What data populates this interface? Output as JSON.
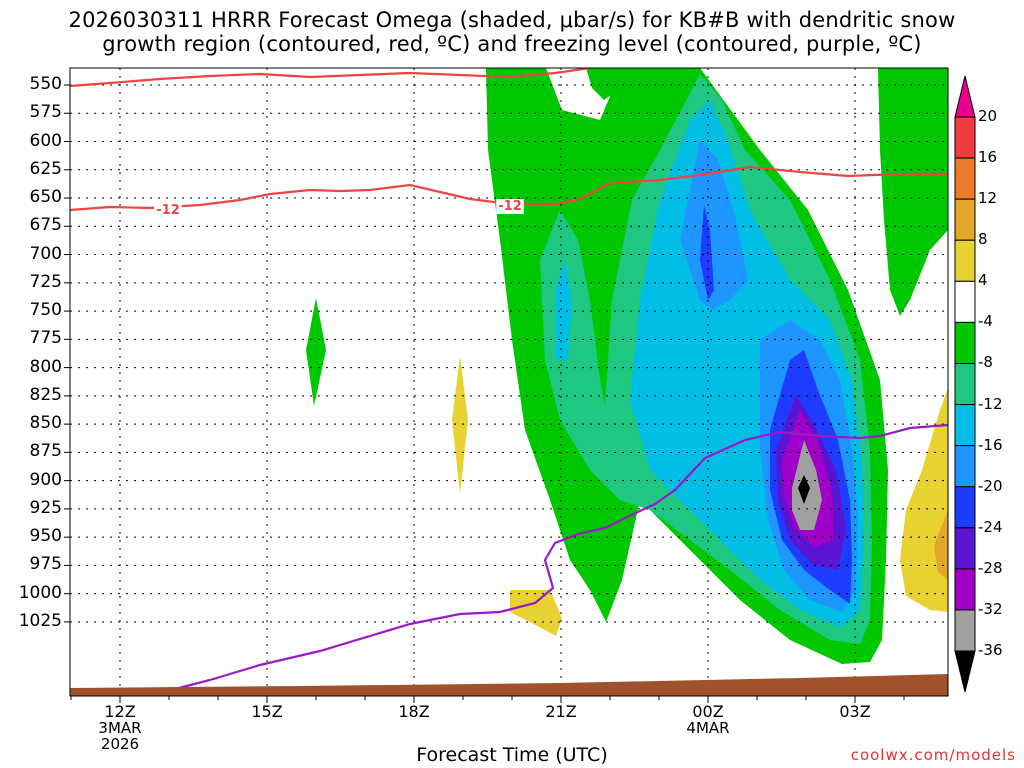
{
  "title_line1": "2026030311 HRRR Forecast Omega (shaded, μbar/s) for KB#B with dendritic snow",
  "title_line2": "growth region (contoured, red, ºC) and freezing level (contoured, purple, ºC)",
  "credit": "coolwx.com/models",
  "chart_data": {
    "type": "heatmap",
    "title": "2026030311 HRRR Forecast Omega (shaded, μbar/s) for KB#B with dendritic snow growth region (contoured, red, ºC) and freezing level (contoured, purple, ºC)",
    "xlabel": "Forecast Time (UTC)",
    "ylabel": "",
    "y_ticks": [
      550,
      575,
      600,
      625,
      650,
      675,
      700,
      725,
      750,
      775,
      800,
      825,
      850,
      875,
      900,
      925,
      950,
      975,
      1000,
      1025
    ],
    "y_axis": "pressure (hPa), inverted",
    "x_ticks": [
      {
        "label": "12Z",
        "sub1": "3MAR",
        "sub2": "2026"
      },
      {
        "label": "15Z",
        "sub1": "",
        "sub2": ""
      },
      {
        "label": "18Z",
        "sub1": "",
        "sub2": ""
      },
      {
        "label": "21Z",
        "sub1": "",
        "sub2": ""
      },
      {
        "label": "00Z",
        "sub1": "4MAR",
        "sub2": ""
      },
      {
        "label": "03Z",
        "sub1": "",
        "sub2": ""
      }
    ],
    "colorbar": {
      "labels": [
        "20",
        "16",
        "12",
        "8",
        "4",
        "-4",
        "-8",
        "-12",
        "-16",
        "-20",
        "-24",
        "-28",
        "-32",
        "-36"
      ],
      "colors": [
        "#e8008c",
        "#f03c3c",
        "#ec7a28",
        "#e4a628",
        "#e8d232",
        "#ffffff",
        "#00c800",
        "#1ec882",
        "#00bee6",
        "#1e96ff",
        "#1e3cff",
        "#5a14d2",
        "#a000c8",
        "#a0a0a0",
        "#000000"
      ]
    },
    "contour_labels": [
      "-12",
      "-12"
    ],
    "grid": true
  }
}
